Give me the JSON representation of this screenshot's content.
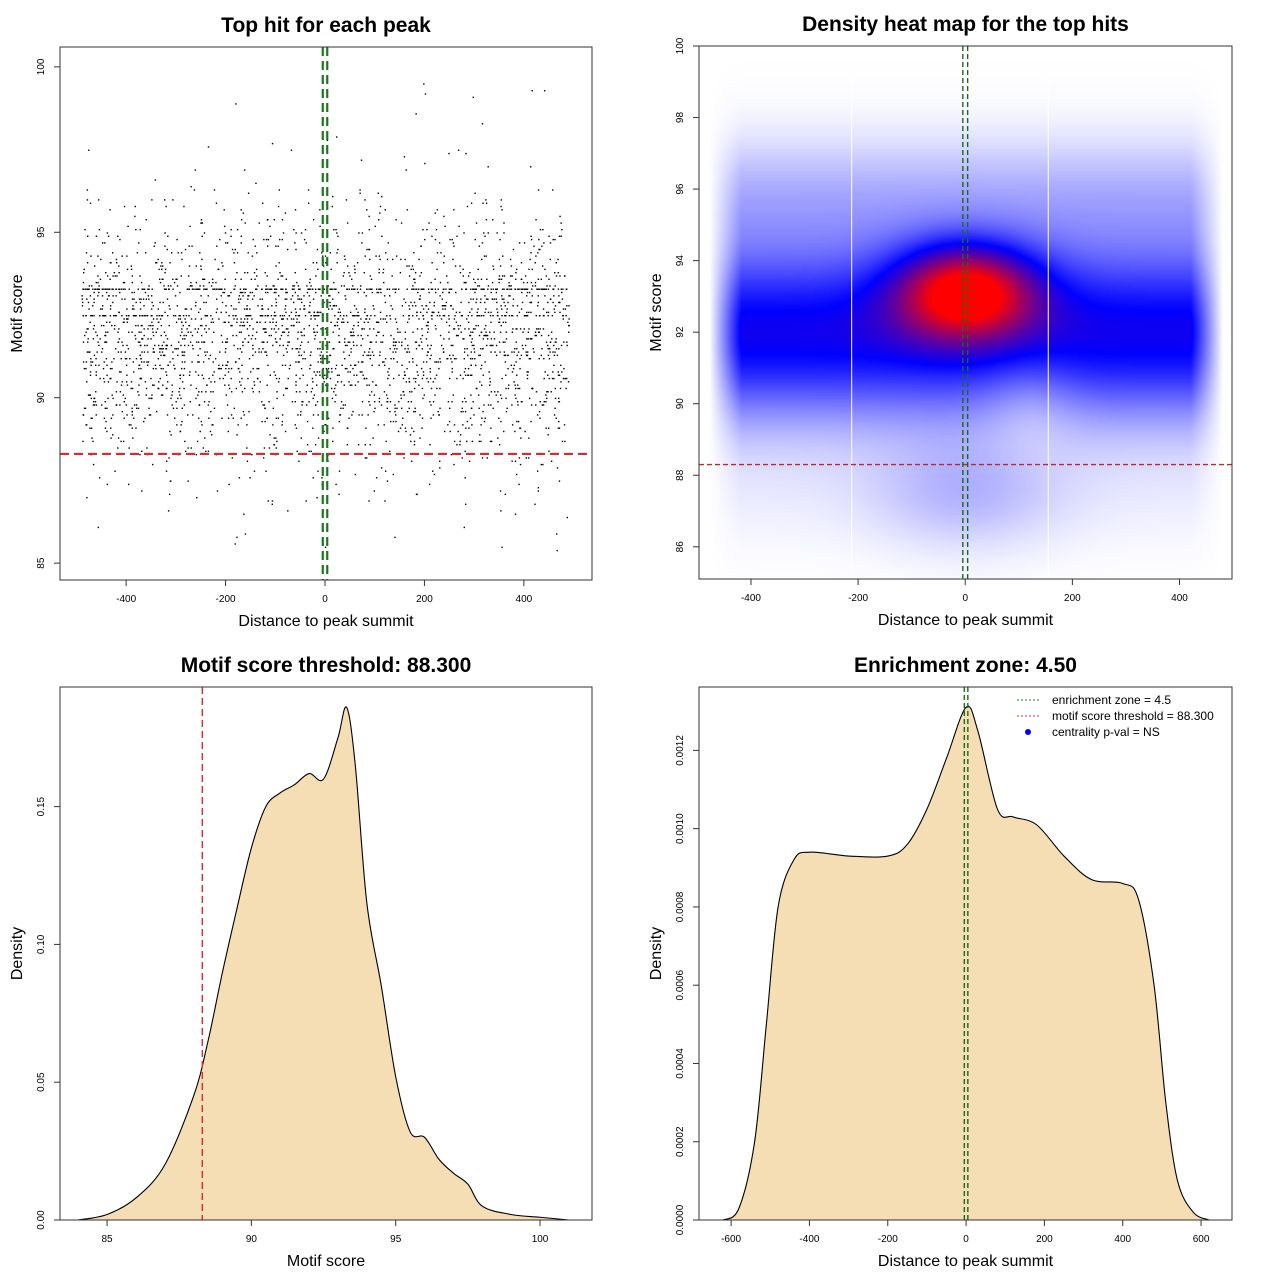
{
  "chart_data": [
    {
      "type": "scatter",
      "title": "Top hit for each peak",
      "xlabel": "Distance to peak summit",
      "ylabel": "Motif score",
      "xlim": [
        -533,
        537
      ],
      "ylim": [
        84.49,
        100.6
      ],
      "xticks": [
        -400,
        -200,
        0,
        200,
        400
      ],
      "yticks": [
        85,
        90,
        95,
        100
      ],
      "points_summary": {
        "count": 3000,
        "x_range": [
          -490,
          490
        ],
        "y_mean": 91.8,
        "y_sd": 2.3,
        "y_min": 85,
        "y_max": 100,
        "score_step": 0.1
      },
      "hlines": [
        {
          "y": 88.3,
          "color": "#e0282d",
          "style": "dashed"
        }
      ],
      "vlines": [
        {
          "x": -4.5,
          "color": "#1a7a1a",
          "style": "dashed"
        },
        {
          "x": 4.5,
          "color": "#1a7a1a",
          "style": "dashed"
        }
      ]
    },
    {
      "type": "heatmap",
      "title": "Density heat map for the top hits",
      "xlabel": "Distance to peak summit",
      "ylabel": "Motif score",
      "xlim": [
        -497,
        498
      ],
      "ylim": [
        85.1,
        100
      ],
      "xticks": [
        -400,
        -200,
        0,
        200,
        400
      ],
      "yticks": [
        86,
        88,
        90,
        92,
        94,
        96,
        98,
        100
      ],
      "color_scale": [
        "#ffffff",
        "#0000ff",
        "#ff0000"
      ],
      "hotspot": {
        "x": 0,
        "y": 93.2
      },
      "band_center": 92,
      "white_vlines": [
        -212,
        155
      ],
      "hlines": [
        {
          "y": 88.3,
          "color": "#b03030",
          "style": "dashed"
        }
      ],
      "vlines": [
        {
          "x": -4.5,
          "color": "#1a6a1a",
          "style": "dashed"
        },
        {
          "x": 4.5,
          "color": "#1a6a1a",
          "style": "dashed"
        }
      ]
    },
    {
      "type": "area",
      "title": "Motif score threshold: 88.300",
      "xlabel": "Motif score",
      "ylabel": "Density",
      "xlim": [
        83.37,
        101.8
      ],
      "ylim": [
        0,
        0.1934
      ],
      "xticks": [
        85,
        90,
        95,
        100
      ],
      "yticks": [
        0.0,
        0.05,
        0.1,
        0.15
      ],
      "ytick_labels": [
        "0.00",
        "0.05",
        "0.10",
        "0.15"
      ],
      "fill": "#f5deb3",
      "x": [
        84,
        85,
        86,
        87,
        88,
        88.5,
        89,
        89.5,
        90,
        90.5,
        91,
        91.5,
        92,
        92.5,
        93,
        93.3,
        93.6,
        94,
        94.5,
        95,
        95.5,
        96,
        96.5,
        97,
        97.5,
        98,
        99,
        100,
        101
      ],
      "y": [
        0,
        0.002,
        0.008,
        0.02,
        0.045,
        0.065,
        0.09,
        0.113,
        0.135,
        0.15,
        0.155,
        0.158,
        0.162,
        0.16,
        0.175,
        0.186,
        0.165,
        0.115,
        0.085,
        0.052,
        0.032,
        0.03,
        0.022,
        0.017,
        0.013,
        0.005,
        0.002,
        0.001,
        0
      ],
      "vlines": [
        {
          "x": 88.3,
          "color": "#e0282d",
          "style": "dashed"
        }
      ]
    },
    {
      "type": "area",
      "title": "Enrichment zone: 4.50",
      "xlabel": "Distance to peak summit",
      "ylabel": "Density",
      "xlim": [
        -682,
        679
      ],
      "ylim": [
        0,
        0.001362
      ],
      "xticks": [
        -600,
        -400,
        -200,
        0,
        200,
        400,
        600
      ],
      "yticks": [
        0,
        0.0002,
        0.0004,
        0.0006,
        0.0008,
        0.001,
        0.0012
      ],
      "ytick_labels": [
        "0.0000",
        "0.0002",
        "0.0004",
        "0.0006",
        "0.0008",
        "0.0010",
        "0.0012"
      ],
      "fill": "#f5deb3",
      "x": [
        -620,
        -580,
        -540,
        -510,
        -480,
        -440,
        -400,
        -300,
        -200,
        -150,
        -100,
        -50,
        0,
        30,
        80,
        120,
        180,
        250,
        320,
        400,
        440,
        480,
        510,
        540,
        580,
        620
      ],
      "y": [
        0,
        3e-05,
        0.0002,
        0.0005,
        0.0008,
        0.00092,
        0.00094,
        0.00093,
        0.00093,
        0.00096,
        0.00105,
        0.00118,
        0.00131,
        0.00125,
        0.00105,
        0.00103,
        0.00101,
        0.00093,
        0.00087,
        0.00086,
        0.00082,
        0.0006,
        0.0003,
        0.0001,
        2e-05,
        0
      ],
      "vlines": [
        {
          "x": -4.5,
          "color": "#1a6a1a",
          "style": "dashed"
        },
        {
          "x": 4.5,
          "color": "#1a6a1a",
          "style": "dashed"
        }
      ],
      "legend": {
        "placement": "top-right",
        "entries": [
          {
            "label": "enrichment zone = 4.5",
            "color": "#1a7a1a",
            "marker": "dotted-line"
          },
          {
            "label": "motif score threshold = 88.300",
            "color": "#e0282d",
            "marker": "dotted-line"
          },
          {
            "label": "centrality p-val = NS",
            "color": "#0000ff",
            "marker": "dot"
          }
        ]
      }
    }
  ]
}
